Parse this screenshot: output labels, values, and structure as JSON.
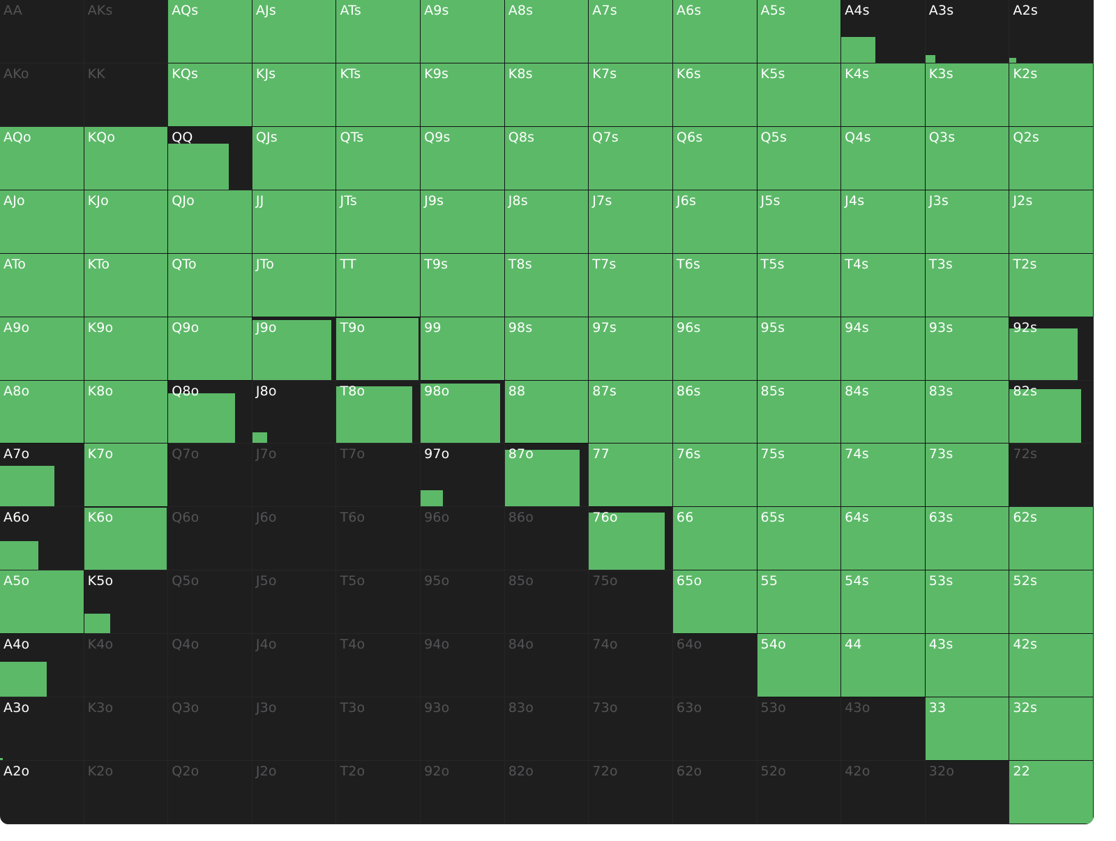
{
  "colors": {
    "action": "#5cb968",
    "background": "#1e1e1f",
    "active_label": "#ffffff",
    "inactive_label": "#545456"
  },
  "grid": {
    "rows": [
      [
        [
          "AA",
          0
        ],
        [
          "AKs",
          0
        ],
        [
          "AQs",
          100
        ],
        [
          "AJs",
          100
        ],
        [
          "ATs",
          100
        ],
        [
          "A9s",
          100
        ],
        [
          "A8s",
          100
        ],
        [
          "A7s",
          100
        ],
        [
          "A6s",
          100
        ],
        [
          "A5s",
          100
        ],
        [
          "A4s",
          17
        ],
        [
          "A3s",
          1.4
        ],
        [
          "A2s",
          0.6
        ]
      ],
      [
        [
          "AKo",
          0
        ],
        [
          "KK",
          0
        ],
        [
          "KQs",
          100
        ],
        [
          "KJs",
          100
        ],
        [
          "KTs",
          100
        ],
        [
          "K9s",
          100
        ],
        [
          "K8s",
          100
        ],
        [
          "K7s",
          100
        ],
        [
          "K6s",
          100
        ],
        [
          "K5s",
          100
        ],
        [
          "K4s",
          100
        ],
        [
          "K3s",
          100
        ],
        [
          "K2s",
          100
        ]
      ],
      [
        [
          "AQo",
          100
        ],
        [
          "KQo",
          100
        ],
        [
          "QQ",
          53
        ],
        [
          "QJs",
          100
        ],
        [
          "QTs",
          100
        ],
        [
          "Q9s",
          100
        ],
        [
          "Q8s",
          100
        ],
        [
          "Q7s",
          100
        ],
        [
          "Q6s",
          100
        ],
        [
          "Q5s",
          100
        ],
        [
          "Q4s",
          100
        ],
        [
          "Q3s",
          100
        ],
        [
          "Q2s",
          100
        ]
      ],
      [
        [
          "AJo",
          100
        ],
        [
          "KJo",
          100
        ],
        [
          "QJo",
          100
        ],
        [
          "JJ",
          100
        ],
        [
          "JTs",
          100
        ],
        [
          "J9s",
          100
        ],
        [
          "J8s",
          100
        ],
        [
          "J7s",
          100
        ],
        [
          "J6s",
          100
        ],
        [
          "J5s",
          100
        ],
        [
          "J4s",
          100
        ],
        [
          "J3s",
          100
        ],
        [
          "J2s",
          100
        ]
      ],
      [
        [
          "ATo",
          100
        ],
        [
          "KTo",
          100
        ],
        [
          "QTo",
          100
        ],
        [
          "JTo",
          100
        ],
        [
          "TT",
          100
        ],
        [
          "T9s",
          100
        ],
        [
          "T8s",
          100
        ],
        [
          "T7s",
          100
        ],
        [
          "T6s",
          100
        ],
        [
          "T5s",
          100
        ],
        [
          "T4s",
          100
        ],
        [
          "T3s",
          100
        ],
        [
          "T2s",
          100
        ]
      ],
      [
        [
          "A9o",
          100
        ],
        [
          "K9o",
          100
        ],
        [
          "Q9o",
          100
        ],
        [
          "J9o",
          90
        ],
        [
          "T9o",
          96
        ],
        [
          "99",
          100
        ],
        [
          "98s",
          100
        ],
        [
          "97s",
          100
        ],
        [
          "96s",
          100
        ],
        [
          "95s",
          100
        ],
        [
          "94s",
          100
        ],
        [
          "93s",
          100
        ],
        [
          "92s",
          66
        ]
      ],
      [
        [
          "A8o",
          100
        ],
        [
          "K8o",
          100
        ],
        [
          "Q8o",
          64
        ],
        [
          "J8o",
          3
        ],
        [
          "T8o",
          83
        ],
        [
          "98o",
          90
        ],
        [
          "88",
          100
        ],
        [
          "87s",
          100
        ],
        [
          "86s",
          100
        ],
        [
          "85s",
          100
        ],
        [
          "84s",
          100
        ],
        [
          "83s",
          100
        ],
        [
          "82s",
          74
        ]
      ],
      [
        [
          "A7o",
          42
        ],
        [
          "K7o",
          100
        ],
        [
          "Q7o",
          0
        ],
        [
          "J7o",
          0
        ],
        [
          "T7o",
          0
        ],
        [
          "97o",
          7
        ],
        [
          "87o",
          81
        ],
        [
          "77",
          100
        ],
        [
          "76s",
          100
        ],
        [
          "75s",
          100
        ],
        [
          "74s",
          100
        ],
        [
          "73s",
          100
        ],
        [
          "72s",
          0
        ]
      ],
      [
        [
          "A6o",
          21
        ],
        [
          "K6o",
          98
        ],
        [
          "Q6o",
          0
        ],
        [
          "J6o",
          0
        ],
        [
          "T6o",
          0
        ],
        [
          "96o",
          0
        ],
        [
          "86o",
          0
        ],
        [
          "76o",
          83
        ],
        [
          "66",
          100
        ],
        [
          "65s",
          100
        ],
        [
          "64s",
          100
        ],
        [
          "63s",
          100
        ],
        [
          "62s",
          100
        ]
      ],
      [
        [
          "A5o",
          100
        ],
        [
          "K5o",
          10
        ],
        [
          "Q5o",
          0
        ],
        [
          "J5o",
          0
        ],
        [
          "T5o",
          0
        ],
        [
          "95o",
          0
        ],
        [
          "85o",
          0
        ],
        [
          "75o",
          0
        ],
        [
          "65o",
          100
        ],
        [
          "55",
          100
        ],
        [
          "54s",
          100
        ],
        [
          "53s",
          100
        ],
        [
          "52s",
          100
        ]
      ],
      [
        [
          "A4o",
          31
        ],
        [
          "K4o",
          0
        ],
        [
          "Q4o",
          0
        ],
        [
          "J4o",
          0
        ],
        [
          "T4o",
          0
        ],
        [
          "94o",
          0
        ],
        [
          "84o",
          0
        ],
        [
          "74o",
          0
        ],
        [
          "64o",
          0
        ],
        [
          "54o",
          100
        ],
        [
          "44",
          100
        ],
        [
          "43s",
          100
        ],
        [
          "42s",
          100
        ]
      ],
      [
        [
          "A3o",
          0.1
        ],
        [
          "K3o",
          0
        ],
        [
          "Q3o",
          0
        ],
        [
          "J3o",
          0
        ],
        [
          "T3o",
          0
        ],
        [
          "93o",
          0
        ],
        [
          "83o",
          0
        ],
        [
          "73o",
          0
        ],
        [
          "63o",
          0
        ],
        [
          "53o",
          0
        ],
        [
          "43o",
          0
        ],
        [
          "33",
          100
        ],
        [
          "32s",
          100
        ]
      ],
      [
        [
          "A2o",
          0.1
        ],
        [
          "K2o",
          0
        ],
        [
          "Q2o",
          0
        ],
        [
          "J2o",
          0
        ],
        [
          "T2o",
          0
        ],
        [
          "92o",
          0
        ],
        [
          "82o",
          0
        ],
        [
          "72o",
          0
        ],
        [
          "62o",
          0
        ],
        [
          "52o",
          0
        ],
        [
          "42o",
          0
        ],
        [
          "32o",
          0
        ],
        [
          "22",
          100
        ]
      ]
    ]
  }
}
